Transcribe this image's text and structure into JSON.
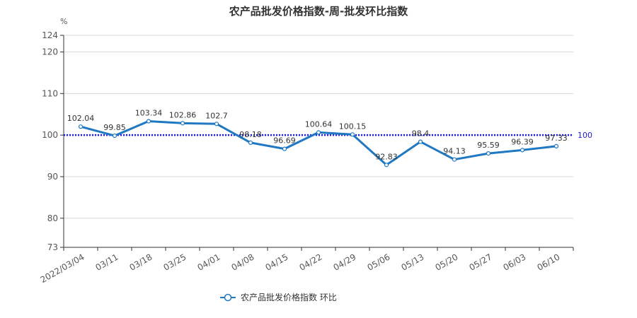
{
  "chart_data": {
    "type": "line",
    "title": "农产品批发价格指数-周-批发环比指数",
    "unit": "%",
    "categories": [
      "2022/03/04",
      "03/11",
      "03/18",
      "03/25",
      "04/01",
      "04/08",
      "04/15",
      "04/22",
      "04/29",
      "05/06",
      "05/13",
      "05/20",
      "05/27",
      "06/03",
      "06/10"
    ],
    "series": [
      {
        "name": "农产品批发价格指数  环比",
        "values": [
          102.04,
          99.85,
          103.34,
          102.86,
          102.7,
          98.18,
          96.69,
          100.64,
          100.15,
          92.83,
          98.4,
          94.13,
          95.59,
          96.39,
          97.33
        ],
        "labels": [
          "102.04",
          "99.85",
          "103.34",
          "102.86",
          "102.7",
          "98.18",
          "96.69",
          "100.64",
          "100.15",
          "92.83",
          "98.4",
          "94.13",
          "95.59",
          "96.39",
          "97.33"
        ],
        "color": "#1f78c1"
      }
    ],
    "reference_line": {
      "value": 100,
      "label": "100",
      "color": "#1c1cd6",
      "style": "dotted"
    },
    "y_ticks": [
      73,
      80,
      90,
      100,
      110,
      120,
      124
    ],
    "y_tick_labels": [
      "73",
      "80",
      "90",
      "100",
      "110",
      "120",
      "124"
    ],
    "ylim": [
      73,
      124
    ],
    "grid": "horizontal",
    "legend_position": "bottom-center"
  }
}
